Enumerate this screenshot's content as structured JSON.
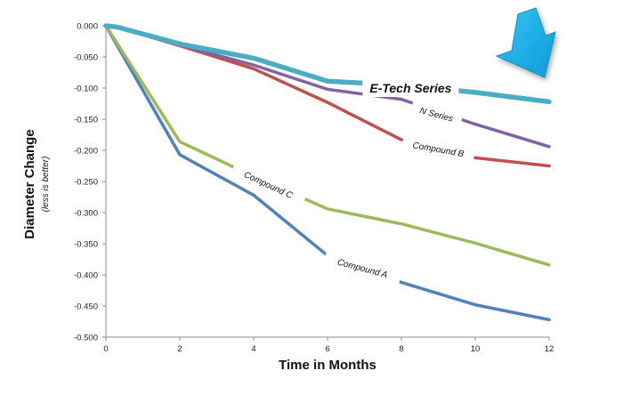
{
  "chart_data": {
    "type": "line",
    "xlabel": "Time in Months",
    "ylabel": "Diameter Change",
    "ylabel_note": "(less is better)",
    "x_ticks": [
      "0",
      "2",
      "4",
      "6",
      "8",
      "10",
      "12"
    ],
    "y_ticks": [
      "0.000",
      "-0.050",
      "-0.100",
      "-0.150",
      "-0.200",
      "-0.250",
      "-0.300",
      "-0.350",
      "-0.400",
      "-0.450",
      "-0.500"
    ],
    "xlim": [
      0,
      12
    ],
    "ylim": [
      -0.5,
      0
    ],
    "grid": false,
    "series": [
      {
        "name": "E-Tech Series",
        "color": "#4bacc6",
        "x": [
          0,
          0.3,
          2,
          4,
          6,
          8,
          10,
          12
        ],
        "y": [
          0,
          -0.002,
          -0.029,
          -0.052,
          -0.089,
          -0.095,
          -0.107,
          -0.122
        ]
      },
      {
        "name": "N Series",
        "color": "#8064a2",
        "x": [
          0,
          0.3,
          2,
          4,
          6,
          8,
          10,
          12
        ],
        "y": [
          0,
          -0.002,
          -0.031,
          -0.063,
          -0.102,
          -0.118,
          -0.158,
          -0.194
        ]
      },
      {
        "name": "Compound B",
        "color": "#c0504d",
        "x": [
          0,
          0.3,
          2,
          4,
          6,
          8,
          10,
          12
        ],
        "y": [
          0,
          -0.002,
          -0.032,
          -0.069,
          -0.123,
          -0.183,
          -0.212,
          -0.225
        ]
      },
      {
        "name": "Compound C",
        "color": "#9bbb59",
        "x": [
          0,
          2,
          4,
          6,
          8,
          10,
          12
        ],
        "y": [
          0,
          -0.186,
          -0.242,
          -0.294,
          -0.318,
          -0.349,
          -0.384
        ]
      },
      {
        "name": "Compound A",
        "color": "#4f81bd",
        "x": [
          0,
          2,
          4,
          6,
          8,
          10,
          12
        ],
        "y": [
          0,
          -0.207,
          -0.272,
          -0.369,
          -0.412,
          -0.448,
          -0.472
        ]
      }
    ],
    "highlight_arrow_color": "#19aee3"
  }
}
